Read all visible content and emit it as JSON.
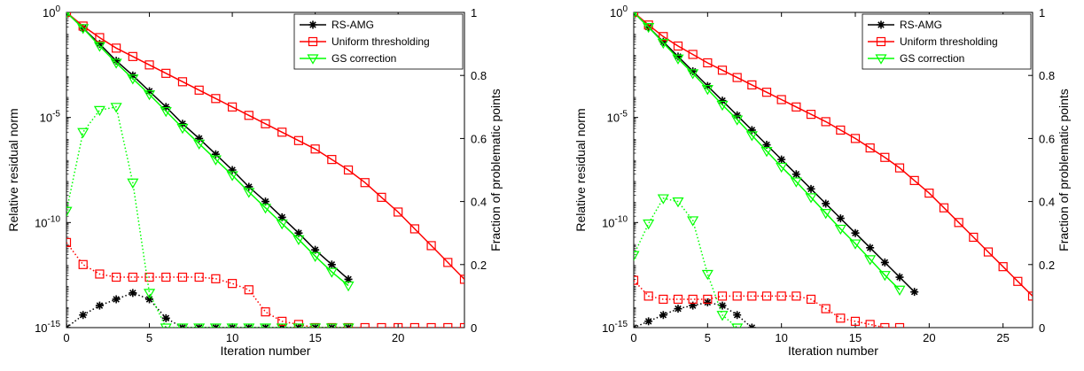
{
  "chart_data": [
    {
      "type": "line",
      "xlabel": "Iteration number",
      "ylabel": "Relative residual norm",
      "y2label": "Fraction of problematic points",
      "xlim": [
        0,
        24
      ],
      "ylim_log10": [
        -15,
        0
      ],
      "y2lim": [
        0,
        1
      ],
      "xticks": [
        0,
        5,
        10,
        15,
        20
      ],
      "xtick_labels": [
        "0",
        "5",
        "10",
        "15",
        "20"
      ],
      "yticks_log10": [
        0,
        -5,
        -10,
        -15
      ],
      "ytick_labels": [
        {
          "b": "10",
          "e": "0"
        },
        {
          "b": "10",
          "e": "-5"
        },
        {
          "b": "10",
          "e": "-10"
        },
        {
          "b": "10",
          "e": "-15"
        }
      ],
      "y2ticks": [
        0,
        0.2,
        0.4,
        0.6,
        0.8,
        1
      ],
      "y2tick_labels": [
        "0",
        "0.2",
        "0.4",
        "0.6",
        "0.8",
        "1"
      ],
      "legend_position": "top-right",
      "legend": [
        "RS-AMG",
        "Uniform thresholding",
        "GS correction"
      ],
      "series": [
        {
          "name": "RS-AMG",
          "role": "residual",
          "color": "#000000",
          "marker": "asterisk",
          "x": [
            0,
            1,
            2,
            3,
            4,
            5,
            6,
            7,
            8,
            9,
            10,
            11,
            12,
            13,
            14,
            15,
            16,
            17
          ],
          "log10_y": [
            0,
            -0.75,
            -1.5,
            -2.3,
            -3.0,
            -3.75,
            -4.5,
            -5.3,
            -6.0,
            -6.75,
            -7.5,
            -8.3,
            -9.0,
            -9.75,
            -10.5,
            -11.3,
            -12.0,
            -12.7
          ]
        },
        {
          "name": "Uniform thresholding",
          "role": "residual",
          "color": "#ff0000",
          "marker": "square",
          "x": [
            0,
            1,
            2,
            3,
            4,
            5,
            6,
            7,
            8,
            9,
            10,
            11,
            12,
            13,
            14,
            15,
            16,
            17,
            18,
            19,
            20,
            21,
            22,
            23,
            24
          ],
          "log10_y": [
            0,
            -0.65,
            -1.2,
            -1.7,
            -2.1,
            -2.5,
            -2.9,
            -3.3,
            -3.7,
            -4.1,
            -4.5,
            -4.9,
            -5.3,
            -5.7,
            -6.1,
            -6.5,
            -7.0,
            -7.5,
            -8.1,
            -8.8,
            -9.5,
            -10.3,
            -11.1,
            -11.9,
            -12.7
          ]
        },
        {
          "name": "GS correction",
          "role": "residual",
          "color": "#00ff00",
          "marker": "triangle-down",
          "x": [
            0,
            1,
            2,
            3,
            4,
            5,
            6,
            7,
            8,
            9,
            10,
            11,
            12,
            13,
            14,
            15,
            16,
            17
          ],
          "log10_y": [
            0,
            -0.75,
            -1.6,
            -2.4,
            -3.15,
            -3.9,
            -4.7,
            -5.5,
            -6.25,
            -7.0,
            -7.75,
            -8.55,
            -9.3,
            -10.05,
            -10.8,
            -11.6,
            -12.35,
            -13.0
          ]
        },
        {
          "name": "RS-AMG",
          "role": "fraction",
          "color": "#000000",
          "marker": "asterisk",
          "x": [
            0,
            1,
            2,
            3,
            4,
            5,
            6,
            7,
            8,
            9,
            10,
            11,
            12,
            13,
            14,
            15,
            16,
            17
          ],
          "y": [
            0,
            0.04,
            0.07,
            0.09,
            0.11,
            0.09,
            0.03,
            0,
            0,
            0,
            0,
            0,
            0,
            0,
            0,
            0,
            0,
            0
          ]
        },
        {
          "name": "Uniform thresholding",
          "role": "fraction",
          "color": "#ff0000",
          "marker": "square",
          "x": [
            0,
            1,
            2,
            3,
            4,
            5,
            6,
            7,
            8,
            9,
            10,
            11,
            12,
            13,
            14,
            15,
            16,
            17,
            18,
            19,
            20,
            21,
            22,
            23,
            24
          ],
          "y": [
            0.27,
            0.2,
            0.17,
            0.16,
            0.16,
            0.16,
            0.16,
            0.16,
            0.16,
            0.155,
            0.14,
            0.12,
            0.05,
            0.02,
            0.01,
            0,
            0,
            0,
            0,
            0,
            0,
            0,
            0,
            0,
            0
          ]
        },
        {
          "name": "GS correction",
          "role": "fraction",
          "color": "#00ff00",
          "marker": "triangle-down",
          "x": [
            0,
            1,
            2,
            3,
            4,
            5,
            6,
            7,
            8,
            9,
            10,
            11,
            12,
            13,
            14,
            15,
            16,
            17
          ],
          "y": [
            0.37,
            0.62,
            0.69,
            0.7,
            0.46,
            0.11,
            0,
            0,
            0,
            0,
            0,
            0,
            0,
            0,
            0,
            0,
            0,
            0
          ]
        }
      ]
    },
    {
      "type": "line",
      "xlabel": "Iteration number",
      "ylabel": "Relative residual norm",
      "y2label": "Fraction of problematic points",
      "xlim": [
        0,
        27
      ],
      "ylim_log10": [
        -15,
        0
      ],
      "y2lim": [
        0,
        1
      ],
      "xticks": [
        0,
        5,
        10,
        15,
        20,
        25
      ],
      "xtick_labels": [
        "0",
        "5",
        "10",
        "15",
        "20",
        "25"
      ],
      "yticks_log10": [
        0,
        -5,
        -10,
        -15
      ],
      "ytick_labels": [
        {
          "b": "10",
          "e": "0"
        },
        {
          "b": "10",
          "e": "-5"
        },
        {
          "b": "10",
          "e": "-10"
        },
        {
          "b": "10",
          "e": "-15"
        }
      ],
      "y2ticks": [
        0,
        0.2,
        0.4,
        0.6,
        0.8,
        1
      ],
      "y2tick_labels": [
        "0",
        "0.2",
        "0.4",
        "0.6",
        "0.8",
        "1"
      ],
      "legend_position": "top-right",
      "legend": [
        "RS-AMG",
        "Uniform thresholding",
        "GS correction"
      ],
      "series": [
        {
          "name": "RS-AMG",
          "role": "residual",
          "color": "#000000",
          "marker": "asterisk",
          "x": [
            0,
            1,
            2,
            3,
            4,
            5,
            6,
            7,
            8,
            9,
            10,
            11,
            12,
            13,
            14,
            15,
            16,
            17,
            18,
            19
          ],
          "log10_y": [
            0,
            -0.7,
            -1.4,
            -2.1,
            -2.8,
            -3.5,
            -4.2,
            -4.9,
            -5.6,
            -6.3,
            -7.0,
            -7.7,
            -8.4,
            -9.1,
            -9.8,
            -10.5,
            -11.2,
            -11.9,
            -12.6,
            -13.3
          ]
        },
        {
          "name": "Uniform thresholding",
          "role": "residual",
          "color": "#ff0000",
          "marker": "square",
          "x": [
            0,
            1,
            2,
            3,
            4,
            5,
            6,
            7,
            8,
            9,
            10,
            11,
            12,
            13,
            14,
            15,
            16,
            17,
            18,
            19,
            20,
            21,
            22,
            23,
            24,
            25,
            26,
            27
          ],
          "log10_y": [
            0,
            -0.6,
            -1.15,
            -1.6,
            -2.0,
            -2.4,
            -2.75,
            -3.1,
            -3.45,
            -3.8,
            -4.15,
            -4.5,
            -4.85,
            -5.2,
            -5.6,
            -6.0,
            -6.45,
            -6.9,
            -7.4,
            -8.0,
            -8.6,
            -9.3,
            -10.0,
            -10.7,
            -11.4,
            -12.1,
            -12.8,
            -13.5
          ]
        },
        {
          "name": "GS correction",
          "role": "residual",
          "color": "#00ff00",
          "marker": "triangle-down",
          "x": [
            0,
            1,
            2,
            3,
            4,
            5,
            6,
            7,
            8,
            9,
            10,
            11,
            12,
            13,
            14,
            15,
            16,
            17,
            18
          ],
          "log10_y": [
            0,
            -0.7,
            -1.45,
            -2.2,
            -2.9,
            -3.65,
            -4.4,
            -5.1,
            -5.85,
            -6.6,
            -7.35,
            -8.05,
            -8.8,
            -9.55,
            -10.3,
            -11.0,
            -11.75,
            -12.5,
            -13.2
          ]
        },
        {
          "name": "RS-AMG",
          "role": "fraction",
          "color": "#000000",
          "marker": "asterisk",
          "x": [
            0,
            1,
            2,
            3,
            4,
            5,
            6,
            7,
            8
          ],
          "y": [
            0,
            0.02,
            0.04,
            0.06,
            0.07,
            0.08,
            0.07,
            0.04,
            0
          ]
        },
        {
          "name": "Uniform thresholding",
          "role": "fraction",
          "color": "#ff0000",
          "marker": "square",
          "x": [
            0,
            1,
            2,
            3,
            4,
            5,
            6,
            7,
            8,
            9,
            10,
            11,
            12,
            13,
            14,
            15,
            16,
            17,
            18
          ],
          "y": [
            0.15,
            0.1,
            0.09,
            0.09,
            0.09,
            0.09,
            0.1,
            0.1,
            0.1,
            0.1,
            0.1,
            0.1,
            0.09,
            0.06,
            0.03,
            0.02,
            0.01,
            0,
            0
          ]
        },
        {
          "name": "GS correction",
          "role": "fraction",
          "color": "#00ff00",
          "marker": "triangle-down",
          "x": [
            0,
            1,
            2,
            3,
            4,
            5,
            6,
            7
          ],
          "y": [
            0.23,
            0.33,
            0.41,
            0.4,
            0.34,
            0.17,
            0.04,
            0
          ]
        }
      ]
    }
  ]
}
